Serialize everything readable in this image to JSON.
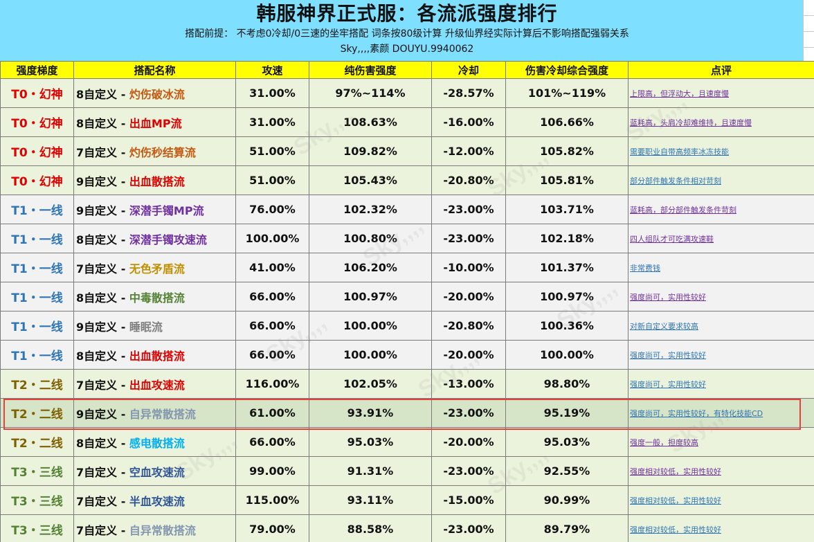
{
  "banner": {
    "title": "韩服神界正式服：各流派强度排行",
    "subtitle": "搭配前提： 不考虑0冷却/0三速的坐牢搭配  词条按80级计算  升级仙界经实际计算后不影响搭配强弱关系",
    "credit": "Sky,,,,素颜 DOUYU.9940062"
  },
  "headers": [
    "强度梯度",
    "搭配名称",
    "攻速",
    "纯伤害强度",
    "冷却",
    "伤害冷却综合强度",
    "点评"
  ],
  "colors": {
    "tier0": "#e00000",
    "tier1": "#2e75b6",
    "tier2": "#7f6000",
    "tier3": "#548235",
    "header_bg": "#ffff00",
    "banner_bg": "#7fdfff",
    "highlight_border": "#e8413c"
  },
  "rows": [
    {
      "tier": "T0・幻神",
      "prefix": "8自定义 - ",
      "style": "灼伤破冰流",
      "style_color": "#c55a11",
      "speed": "31.00%",
      "damage": "97%~114%",
      "cooldown": "-28.57%",
      "combined": "101%~119%",
      "comment": "上限高，但浮动大，且速度慢",
      "comment_color": "#7030a0"
    },
    {
      "tier": "T0・幻神",
      "prefix": "8自定义 - ",
      "style": "出血MP流",
      "style_color": "#e00000",
      "speed": "31.00%",
      "damage": "108.63%",
      "cooldown": "-16.00%",
      "combined": "106.66%",
      "comment": "蓝耗高，头肩冷却难维持，且速度慢",
      "comment_color": "#7030a0"
    },
    {
      "tier": "T0・幻神",
      "prefix": "7自定义 - ",
      "style": "灼伤秒结算流",
      "style_color": "#c55a11",
      "speed": "51.00%",
      "damage": "109.82%",
      "cooldown": "-12.00%",
      "combined": "105.82%",
      "comment": "需要职业自带高频率冰冻技能",
      "comment_color": "#2e75b6"
    },
    {
      "tier": "T0・幻神",
      "prefix": "9自定义 - ",
      "style": "出血散搭流",
      "style_color": "#e00000",
      "speed": "51.00%",
      "damage": "105.43%",
      "cooldown": "-20.80%",
      "combined": "105.81%",
      "comment": "部分部件触发条件相对苛刻",
      "comment_color": "#2e75b6"
    },
    {
      "tier": "T1・一线",
      "prefix": "9自定义 - ",
      "style": "深潜手镯MP流",
      "style_color": "#7030a0",
      "speed": "76.00%",
      "damage": "102.32%",
      "cooldown": "-23.00%",
      "combined": "103.71%",
      "comment": "蓝耗高，部分部件触发条件苛刻",
      "comment_color": "#7030a0"
    },
    {
      "tier": "T1・一线",
      "prefix": "8自定义 - ",
      "style": "深潜手镯攻速流",
      "style_color": "#7030a0",
      "speed": "100.00%",
      "damage": "100.80%",
      "cooldown": "-23.00%",
      "combined": "102.18%",
      "comment": "四人组队才可吃满攻速鞋",
      "comment_color": "#7030a0"
    },
    {
      "tier": "T1・一线",
      "prefix": "7自定义 - ",
      "style": "无色矛盾流",
      "style_color": "#bf9000",
      "speed": "41.00%",
      "damage": "106.20%",
      "cooldown": "-10.00%",
      "combined": "101.37%",
      "comment": "非常费钱",
      "comment_color": "#2e75b6"
    },
    {
      "tier": "T1・一线",
      "prefix": "8自定义 - ",
      "style": "中毒散搭流",
      "style_color": "#548235",
      "speed": "66.00%",
      "damage": "100.97%",
      "cooldown": "-20.00%",
      "combined": "100.97%",
      "comment": "强度尚可，实用性较好",
      "comment_color": "#7030a0"
    },
    {
      "tier": "T1・一线",
      "prefix": "9自定义 - ",
      "style": "睡眠流",
      "style_color": "#808080",
      "speed": "66.00%",
      "damage": "100.00%",
      "cooldown": "-20.80%",
      "combined": "100.36%",
      "comment": "对新自定义要求较高",
      "comment_color": "#2e75b6"
    },
    {
      "tier": "T1・一线",
      "prefix": "8自定义 - ",
      "style": "出血散搭流",
      "style_color": "#e00000",
      "speed": "66.00%",
      "damage": "100.00%",
      "cooldown": "-20.00%",
      "combined": "100.00%",
      "comment": "强度尚可，实用性较好",
      "comment_color": "#2e75b6"
    },
    {
      "tier": "T2・二线",
      "prefix": "7自定义 - ",
      "style": "出血攻速流",
      "style_color": "#e00000",
      "speed": "116.00%",
      "damage": "102.05%",
      "cooldown": "-13.00%",
      "combined": "98.80%",
      "comment": "强度尚可，实用性较好",
      "comment_color": "#2e75b6"
    },
    {
      "tier": "T2・二线",
      "prefix": "9自定义 - ",
      "style": "自异常散搭流",
      "style_color": "#8497b0",
      "speed": "61.00%",
      "damage": "93.91%",
      "cooldown": "-23.00%",
      "combined": "95.19%",
      "comment": "强度尚可，实用性较好，有特化技能CD",
      "comment_color": "#2e75b6"
    },
    {
      "tier": "T2・二线",
      "prefix": "8自定义 - ",
      "style": "感电散搭流",
      "style_color": "#00b0f0",
      "speed": "66.00%",
      "damage": "95.03%",
      "cooldown": "-20.00%",
      "combined": "95.03%",
      "comment": "强度一般，担度较高",
      "comment_color": "#7030a0"
    },
    {
      "tier": "T3・三线",
      "prefix": "7自定义 - ",
      "style": "空血攻速流",
      "style_color": "#2f5597",
      "speed": "99.00%",
      "damage": "91.31%",
      "cooldown": "-23.00%",
      "combined": "92.55%",
      "comment": "强度相对较低，实用性较好",
      "comment_color": "#7030a0"
    },
    {
      "tier": "T3・三线",
      "prefix": "7自定义 - ",
      "style": "半血攻速流",
      "style_color": "#2f5597",
      "speed": "115.00%",
      "damage": "93.11%",
      "cooldown": "-15.00%",
      "combined": "90.99%",
      "comment": "强度相对较低，实用性较好",
      "comment_color": "#2e75b6"
    },
    {
      "tier": "T3・三线",
      "prefix": "7自定义 - ",
      "style": "自异常散搭流",
      "style_color": "#8497b0",
      "speed": "79.00%",
      "damage": "88.58%",
      "cooldown": "-23.00%",
      "combined": "89.79%",
      "comment": "强度相对较低，实用性较好",
      "comment_color": "#2e75b6"
    }
  ]
}
